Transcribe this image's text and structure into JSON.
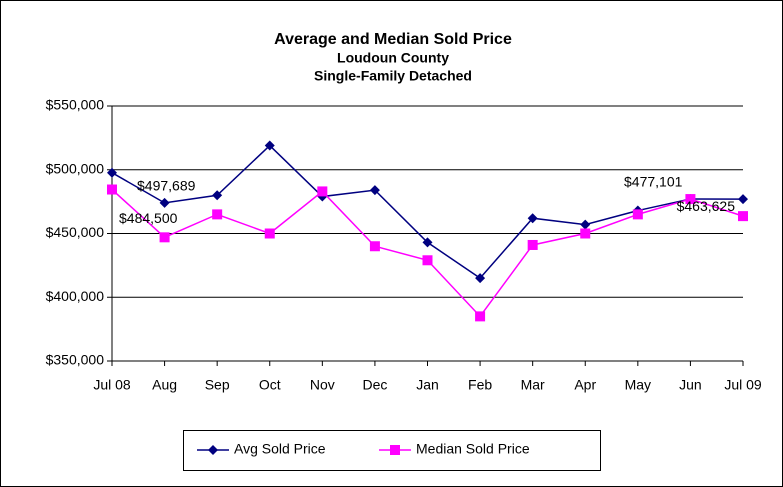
{
  "chart_data": {
    "type": "line",
    "title": "Average and Median Sold Price",
    "subtitle": [
      "Loudoun County",
      "Single-Family Detached"
    ],
    "categories": [
      "Jul 08",
      "Aug",
      "Sep",
      "Oct",
      "Nov",
      "Dec",
      "Jan",
      "Feb",
      "Mar",
      "Apr",
      "May",
      "Jun",
      "Jul 09"
    ],
    "series": [
      {
        "name": "Avg Sold Price",
        "color": "#000080",
        "marker": "diamond",
        "values": [
          497689,
          474000,
          480000,
          519000,
          479000,
          484000,
          443000,
          415000,
          462000,
          457000,
          468000,
          477101,
          477000
        ],
        "value_labels": [
          "$497,689",
          null,
          null,
          null,
          null,
          null,
          null,
          null,
          null,
          null,
          null,
          "$477,101",
          null
        ]
      },
      {
        "name": "Median Sold Price",
        "color": "#ff00ff",
        "marker": "square",
        "values": [
          484500,
          447000,
          465000,
          450000,
          483000,
          440000,
          429000,
          385000,
          441000,
          450000,
          465000,
          477000,
          463625
        ],
        "value_labels": [
          "$484,500",
          null,
          null,
          null,
          null,
          null,
          null,
          null,
          null,
          null,
          null,
          null,
          "$463,625"
        ]
      }
    ],
    "ylim": [
      350000,
      550000
    ],
    "yticks": [
      {
        "value": 350000,
        "label": "$350,000"
      },
      {
        "value": 400000,
        "label": "$400,000"
      },
      {
        "value": 450000,
        "label": "$450,000"
      },
      {
        "value": 500000,
        "label": "$500,000"
      },
      {
        "value": 550000,
        "label": "$550,000"
      }
    ],
    "grid": true
  }
}
